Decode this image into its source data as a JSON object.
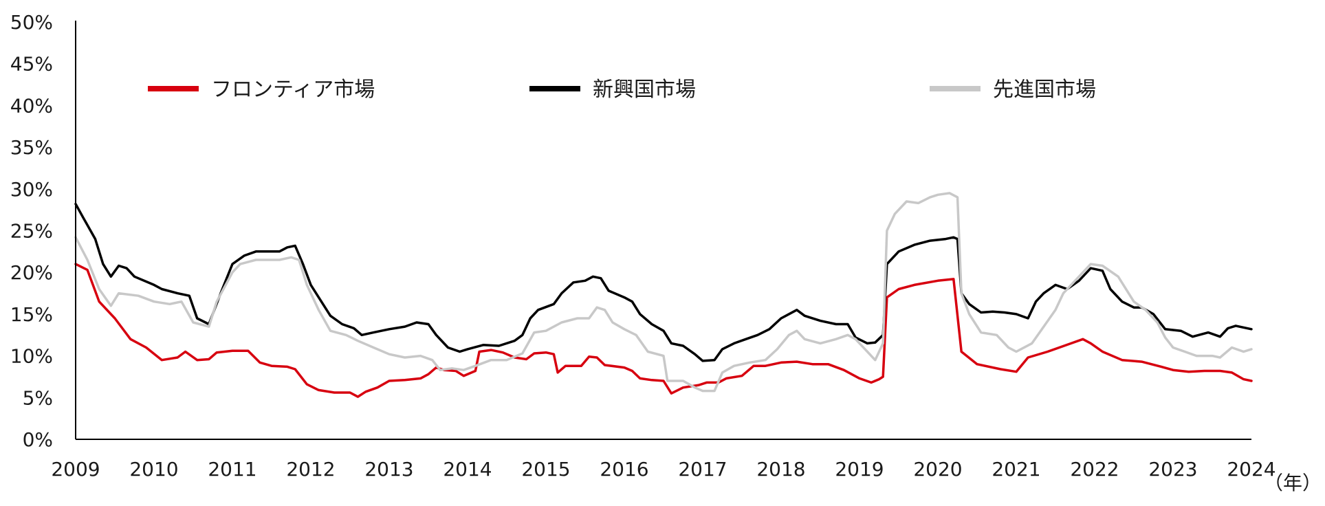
{
  "chart_data": {
    "type": "line",
    "title": "",
    "xlabel": "",
    "ylabel": "",
    "x_unit_label": "（年）",
    "x_ticks": [
      "2009",
      "2010",
      "2011",
      "2012",
      "2013",
      "2014",
      "2015",
      "2016",
      "2017",
      "2018",
      "2019",
      "2020",
      "2021",
      "2022",
      "2023",
      "2024"
    ],
    "y_ticks": [
      "0%",
      "5%",
      "10%",
      "15%",
      "20%",
      "25%",
      "30%",
      "35%",
      "40%",
      "45%",
      "50%"
    ],
    "xlim": [
      2009,
      2024
    ],
    "ylim": [
      0,
      50
    ],
    "grid": false,
    "legend_position": "top",
    "series": [
      {
        "name": "フロンティア市場",
        "color": "#d7000f",
        "points": [
          [
            2009.0,
            21.0
          ],
          [
            2009.15,
            20.3
          ],
          [
            2009.3,
            16.5
          ],
          [
            2009.5,
            14.5
          ],
          [
            2009.7,
            12.0
          ],
          [
            2009.9,
            11.0
          ],
          [
            2010.1,
            9.5
          ],
          [
            2010.3,
            9.8
          ],
          [
            2010.4,
            10.5
          ],
          [
            2010.55,
            9.5
          ],
          [
            2010.7,
            9.6
          ],
          [
            2010.8,
            10.4
          ],
          [
            2011.0,
            10.6
          ],
          [
            2011.2,
            10.6
          ],
          [
            2011.35,
            9.2
          ],
          [
            2011.5,
            8.8
          ],
          [
            2011.7,
            8.7
          ],
          [
            2011.8,
            8.4
          ],
          [
            2011.95,
            6.6
          ],
          [
            2012.1,
            5.9
          ],
          [
            2012.3,
            5.6
          ],
          [
            2012.5,
            5.6
          ],
          [
            2012.6,
            5.1
          ],
          [
            2012.7,
            5.7
          ],
          [
            2012.85,
            6.2
          ],
          [
            2013.0,
            7.0
          ],
          [
            2013.2,
            7.1
          ],
          [
            2013.4,
            7.3
          ],
          [
            2013.5,
            7.8
          ],
          [
            2013.6,
            8.6
          ],
          [
            2013.7,
            8.3
          ],
          [
            2013.85,
            8.2
          ],
          [
            2013.95,
            7.6
          ],
          [
            2014.1,
            8.2
          ],
          [
            2014.15,
            10.5
          ],
          [
            2014.3,
            10.7
          ],
          [
            2014.45,
            10.4
          ],
          [
            2014.6,
            9.8
          ],
          [
            2014.75,
            9.6
          ],
          [
            2014.85,
            10.3
          ],
          [
            2015.0,
            10.4
          ],
          [
            2015.1,
            10.2
          ],
          [
            2015.15,
            8.0
          ],
          [
            2015.25,
            8.8
          ],
          [
            2015.45,
            8.8
          ],
          [
            2015.55,
            9.9
          ],
          [
            2015.65,
            9.8
          ],
          [
            2015.75,
            8.9
          ],
          [
            2016.0,
            8.6
          ],
          [
            2016.1,
            8.2
          ],
          [
            2016.2,
            7.3
          ],
          [
            2016.35,
            7.1
          ],
          [
            2016.5,
            7.0
          ],
          [
            2016.6,
            5.5
          ],
          [
            2016.75,
            6.2
          ],
          [
            2016.95,
            6.5
          ],
          [
            2017.05,
            6.8
          ],
          [
            2017.2,
            6.8
          ],
          [
            2017.3,
            7.3
          ],
          [
            2017.5,
            7.6
          ],
          [
            2017.65,
            8.8
          ],
          [
            2017.8,
            8.8
          ],
          [
            2018.0,
            9.2
          ],
          [
            2018.2,
            9.3
          ],
          [
            2018.4,
            9.0
          ],
          [
            2018.6,
            9.0
          ],
          [
            2018.8,
            8.3
          ],
          [
            2019.0,
            7.3
          ],
          [
            2019.15,
            6.8
          ],
          [
            2019.25,
            7.2
          ],
          [
            2019.3,
            7.5
          ],
          [
            2019.35,
            17.0
          ],
          [
            2019.5,
            18.0
          ],
          [
            2019.7,
            18.5
          ],
          [
            2020.0,
            19.0
          ],
          [
            2020.2,
            19.2
          ],
          [
            2020.3,
            10.5
          ],
          [
            2020.5,
            9.0
          ],
          [
            2020.8,
            8.4
          ],
          [
            2021.0,
            8.1
          ],
          [
            2021.15,
            9.8
          ],
          [
            2021.4,
            10.5
          ],
          [
            2021.7,
            11.5
          ],
          [
            2021.85,
            12.0
          ],
          [
            2021.95,
            11.5
          ],
          [
            2022.1,
            10.5
          ],
          [
            2022.35,
            9.5
          ],
          [
            2022.6,
            9.3
          ],
          [
            2022.85,
            8.7
          ],
          [
            2023.0,
            8.3
          ],
          [
            2023.2,
            8.1
          ],
          [
            2023.4,
            8.2
          ],
          [
            2023.6,
            8.2
          ],
          [
            2023.75,
            8.0
          ],
          [
            2023.9,
            7.2
          ],
          [
            2024.0,
            7.0
          ]
        ]
      },
      {
        "name": "新興国市場",
        "color": "#000000",
        "points": [
          [
            2009.0,
            28.2
          ],
          [
            2009.1,
            26.5
          ],
          [
            2009.25,
            24.0
          ],
          [
            2009.35,
            21.0
          ],
          [
            2009.45,
            19.5
          ],
          [
            2009.55,
            20.8
          ],
          [
            2009.65,
            20.5
          ],
          [
            2009.75,
            19.5
          ],
          [
            2010.0,
            18.5
          ],
          [
            2010.1,
            18.0
          ],
          [
            2010.3,
            17.5
          ],
          [
            2010.45,
            17.2
          ],
          [
            2010.55,
            14.5
          ],
          [
            2010.7,
            13.8
          ],
          [
            2010.85,
            17.5
          ],
          [
            2011.0,
            21.0
          ],
          [
            2011.15,
            22.0
          ],
          [
            2011.3,
            22.5
          ],
          [
            2011.45,
            22.5
          ],
          [
            2011.6,
            22.5
          ],
          [
            2011.7,
            23.0
          ],
          [
            2011.8,
            23.2
          ],
          [
            2011.9,
            21.0
          ],
          [
            2012.0,
            18.5
          ],
          [
            2012.25,
            14.8
          ],
          [
            2012.4,
            13.8
          ],
          [
            2012.55,
            13.3
          ],
          [
            2012.65,
            12.5
          ],
          [
            2012.8,
            12.8
          ],
          [
            2013.0,
            13.2
          ],
          [
            2013.2,
            13.5
          ],
          [
            2013.35,
            14.0
          ],
          [
            2013.5,
            13.8
          ],
          [
            2013.6,
            12.5
          ],
          [
            2013.75,
            11.0
          ],
          [
            2013.9,
            10.5
          ],
          [
            2014.0,
            10.8
          ],
          [
            2014.2,
            11.3
          ],
          [
            2014.4,
            11.2
          ],
          [
            2014.6,
            11.8
          ],
          [
            2014.7,
            12.5
          ],
          [
            2014.8,
            14.5
          ],
          [
            2014.9,
            15.5
          ],
          [
            2015.1,
            16.2
          ],
          [
            2015.2,
            17.5
          ],
          [
            2015.35,
            18.8
          ],
          [
            2015.5,
            19.0
          ],
          [
            2015.6,
            19.5
          ],
          [
            2015.7,
            19.3
          ],
          [
            2015.8,
            17.8
          ],
          [
            2016.0,
            17.0
          ],
          [
            2016.1,
            16.5
          ],
          [
            2016.2,
            15.0
          ],
          [
            2016.35,
            13.8
          ],
          [
            2016.5,
            13.0
          ],
          [
            2016.6,
            11.5
          ],
          [
            2016.75,
            11.2
          ],
          [
            2016.9,
            10.2
          ],
          [
            2017.0,
            9.4
          ],
          [
            2017.15,
            9.5
          ],
          [
            2017.25,
            10.8
          ],
          [
            2017.4,
            11.5
          ],
          [
            2017.55,
            12.0
          ],
          [
            2017.7,
            12.5
          ],
          [
            2017.85,
            13.2
          ],
          [
            2018.0,
            14.5
          ],
          [
            2018.2,
            15.5
          ],
          [
            2018.3,
            14.8
          ],
          [
            2018.5,
            14.2
          ],
          [
            2018.7,
            13.8
          ],
          [
            2018.85,
            13.8
          ],
          [
            2018.95,
            12.2
          ],
          [
            2019.1,
            11.5
          ],
          [
            2019.2,
            11.6
          ],
          [
            2019.3,
            12.5
          ],
          [
            2019.35,
            21.0
          ],
          [
            2019.5,
            22.5
          ],
          [
            2019.7,
            23.3
          ],
          [
            2019.9,
            23.8
          ],
          [
            2020.1,
            24.0
          ],
          [
            2020.2,
            24.2
          ],
          [
            2020.25,
            24.0
          ],
          [
            2020.3,
            17.5
          ],
          [
            2020.4,
            16.2
          ],
          [
            2020.55,
            15.2
          ],
          [
            2020.7,
            15.3
          ],
          [
            2020.85,
            15.2
          ],
          [
            2021.0,
            15.0
          ],
          [
            2021.15,
            14.5
          ],
          [
            2021.25,
            16.5
          ],
          [
            2021.35,
            17.5
          ],
          [
            2021.5,
            18.5
          ],
          [
            2021.65,
            18.0
          ],
          [
            2021.8,
            19.0
          ],
          [
            2021.95,
            20.5
          ],
          [
            2022.1,
            20.2
          ],
          [
            2022.2,
            18.0
          ],
          [
            2022.35,
            16.5
          ],
          [
            2022.5,
            15.8
          ],
          [
            2022.6,
            15.8
          ],
          [
            2022.75,
            15.0
          ],
          [
            2022.9,
            13.2
          ],
          [
            2023.1,
            13.0
          ],
          [
            2023.25,
            12.3
          ],
          [
            2023.45,
            12.8
          ],
          [
            2023.6,
            12.3
          ],
          [
            2023.7,
            13.3
          ],
          [
            2023.8,
            13.6
          ],
          [
            2024.0,
            13.2
          ]
        ]
      },
      {
        "name": "先進国市場",
        "color": "#c8c8c8",
        "points": [
          [
            2009.0,
            24.2
          ],
          [
            2009.15,
            21.5
          ],
          [
            2009.3,
            18.0
          ],
          [
            2009.45,
            16.0
          ],
          [
            2009.55,
            17.5
          ],
          [
            2009.8,
            17.2
          ],
          [
            2010.0,
            16.5
          ],
          [
            2010.2,
            16.2
          ],
          [
            2010.35,
            16.5
          ],
          [
            2010.5,
            14.0
          ],
          [
            2010.7,
            13.5
          ],
          [
            2010.8,
            16.5
          ],
          [
            2011.0,
            20.0
          ],
          [
            2011.1,
            21.0
          ],
          [
            2011.3,
            21.5
          ],
          [
            2011.6,
            21.5
          ],
          [
            2011.75,
            21.8
          ],
          [
            2011.85,
            21.5
          ],
          [
            2011.95,
            18.5
          ],
          [
            2012.1,
            15.5
          ],
          [
            2012.25,
            13.0
          ],
          [
            2012.45,
            12.5
          ],
          [
            2012.6,
            11.8
          ],
          [
            2012.8,
            11.0
          ],
          [
            2013.0,
            10.2
          ],
          [
            2013.2,
            9.8
          ],
          [
            2013.4,
            10.0
          ],
          [
            2013.55,
            9.5
          ],
          [
            2013.65,
            8.3
          ],
          [
            2013.8,
            8.5
          ],
          [
            2013.95,
            8.3
          ],
          [
            2014.1,
            8.8
          ],
          [
            2014.3,
            9.5
          ],
          [
            2014.5,
            9.5
          ],
          [
            2014.7,
            10.3
          ],
          [
            2014.85,
            12.8
          ],
          [
            2015.0,
            13.0
          ],
          [
            2015.2,
            14.0
          ],
          [
            2015.4,
            14.5
          ],
          [
            2015.55,
            14.5
          ],
          [
            2015.65,
            15.8
          ],
          [
            2015.75,
            15.5
          ],
          [
            2015.85,
            14.0
          ],
          [
            2016.0,
            13.2
          ],
          [
            2016.15,
            12.5
          ],
          [
            2016.3,
            10.5
          ],
          [
            2016.5,
            10.0
          ],
          [
            2016.55,
            7.0
          ],
          [
            2016.75,
            7.0
          ],
          [
            2016.9,
            6.2
          ],
          [
            2017.0,
            5.8
          ],
          [
            2017.15,
            5.8
          ],
          [
            2017.25,
            8.0
          ],
          [
            2017.4,
            8.8
          ],
          [
            2017.6,
            9.2
          ],
          [
            2017.8,
            9.5
          ],
          [
            2017.95,
            10.8
          ],
          [
            2018.1,
            12.5
          ],
          [
            2018.2,
            13.0
          ],
          [
            2018.3,
            12.0
          ],
          [
            2018.5,
            11.5
          ],
          [
            2018.7,
            12.0
          ],
          [
            2018.85,
            12.5
          ],
          [
            2018.95,
            12.0
          ],
          [
            2019.1,
            10.5
          ],
          [
            2019.2,
            9.5
          ],
          [
            2019.3,
            11.5
          ],
          [
            2019.35,
            25.0
          ],
          [
            2019.45,
            27.0
          ],
          [
            2019.6,
            28.5
          ],
          [
            2019.75,
            28.3
          ],
          [
            2019.9,
            29.0
          ],
          [
            2020.0,
            29.3
          ],
          [
            2020.15,
            29.5
          ],
          [
            2020.25,
            29.0
          ],
          [
            2020.3,
            17.5
          ],
          [
            2020.4,
            15.0
          ],
          [
            2020.55,
            12.8
          ],
          [
            2020.75,
            12.5
          ],
          [
            2020.9,
            11.0
          ],
          [
            2021.0,
            10.5
          ],
          [
            2021.2,
            11.5
          ],
          [
            2021.35,
            13.5
          ],
          [
            2021.5,
            15.5
          ],
          [
            2021.6,
            17.5
          ],
          [
            2021.8,
            19.5
          ],
          [
            2021.95,
            21.0
          ],
          [
            2022.1,
            20.8
          ],
          [
            2022.3,
            19.5
          ],
          [
            2022.5,
            16.5
          ],
          [
            2022.65,
            15.5
          ],
          [
            2022.8,
            14.0
          ],
          [
            2022.9,
            12.2
          ],
          [
            2023.0,
            11.0
          ],
          [
            2023.15,
            10.5
          ],
          [
            2023.3,
            10.0
          ],
          [
            2023.5,
            10.0
          ],
          [
            2023.6,
            9.8
          ],
          [
            2023.75,
            11.0
          ],
          [
            2023.9,
            10.5
          ],
          [
            2024.0,
            10.8
          ]
        ]
      }
    ]
  }
}
